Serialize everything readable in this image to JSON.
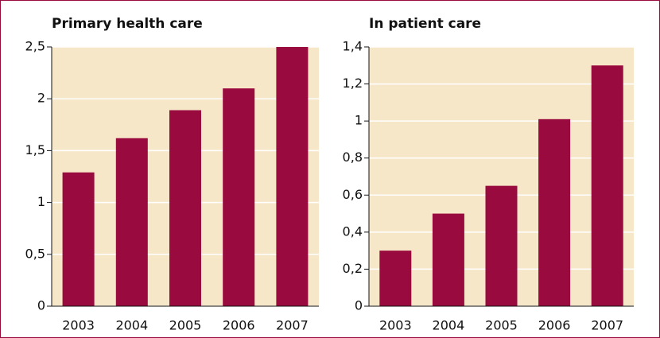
{
  "chart_data": [
    {
      "type": "bar",
      "title": "Primary health care",
      "categories": [
        "2003",
        "2004",
        "2005",
        "2006",
        "2007"
      ],
      "values": [
        1.29,
        1.62,
        1.89,
        2.1,
        2.5
      ],
      "color": "#990a3e",
      "ylim": [
        0,
        2.5
      ],
      "yticks": [
        0,
        {
          "value": 0.5,
          "label": "0,5"
        },
        1,
        {
          "value": 1.5,
          "label": "1,5"
        },
        2,
        {
          "value": 2.5,
          "label": "2,5"
        }
      ],
      "grid": true
    },
    {
      "type": "bar",
      "title": "In patient care",
      "categories": [
        "2003",
        "2004",
        "2005",
        "2006",
        "2007"
      ],
      "values": [
        0.3,
        0.5,
        0.65,
        1.01,
        1.3
      ],
      "color": "#990a3e",
      "ylim": [
        0,
        1.4
      ],
      "yticks": [
        0,
        {
          "value": 0.2,
          "label": "0,2"
        },
        {
          "value": 0.4,
          "label": "0,4"
        },
        {
          "value": 0.6,
          "label": "0,6"
        },
        {
          "value": 0.8,
          "label": "0,8"
        },
        1,
        {
          "value": 1.2,
          "label": "1,2"
        },
        {
          "value": 1.4,
          "label": "1,4"
        }
      ],
      "grid": true
    }
  ]
}
